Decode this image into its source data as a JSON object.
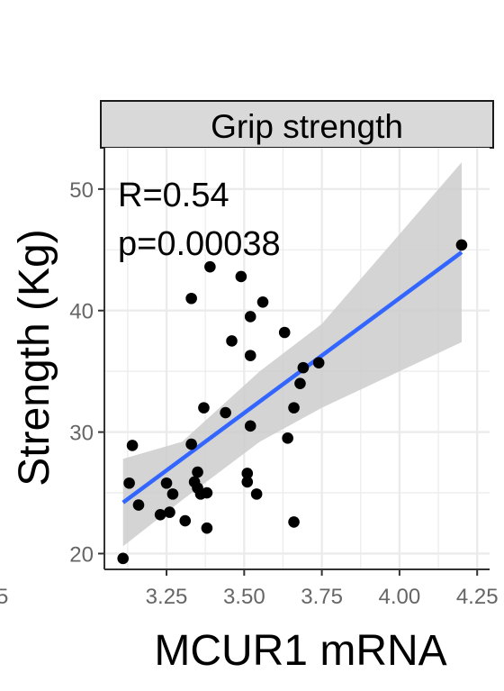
{
  "chart_data": {
    "type": "scatter",
    "panel_title": "Grip strength",
    "xlabel": "MCUR1 mRNA",
    "ylabel": "Strength (Kg)",
    "annotations": [
      "R=0.54",
      "p=0.00038"
    ],
    "xlim": [
      3.05,
      4.29
    ],
    "ylim": [
      18.7,
      53.4
    ],
    "x_ticks": [
      3.25,
      3.5,
      3.75,
      4.0,
      4.25
    ],
    "x_tick_labels": [
      "3.25",
      "3.50",
      "3.75",
      "4.00",
      "4.25"
    ],
    "y_ticks": [
      20,
      30,
      40,
      50
    ],
    "y_tick_labels": [
      "20",
      "30",
      "40",
      "50"
    ],
    "grid": true,
    "cropped_left_tick_label": "5",
    "points": [
      {
        "x": 3.11,
        "y": 19.6
      },
      {
        "x": 3.13,
        "y": 25.8
      },
      {
        "x": 3.14,
        "y": 28.9
      },
      {
        "x": 3.16,
        "y": 24.0
      },
      {
        "x": 3.23,
        "y": 23.2
      },
      {
        "x": 3.25,
        "y": 25.8
      },
      {
        "x": 3.26,
        "y": 23.4
      },
      {
        "x": 3.27,
        "y": 24.9
      },
      {
        "x": 3.31,
        "y": 22.7
      },
      {
        "x": 3.33,
        "y": 41.0
      },
      {
        "x": 3.33,
        "y": 29.0
      },
      {
        "x": 3.34,
        "y": 25.9
      },
      {
        "x": 3.35,
        "y": 26.7
      },
      {
        "x": 3.35,
        "y": 25.4
      },
      {
        "x": 3.36,
        "y": 24.9
      },
      {
        "x": 3.37,
        "y": 32.0
      },
      {
        "x": 3.38,
        "y": 25.0
      },
      {
        "x": 3.38,
        "y": 22.1
      },
      {
        "x": 3.39,
        "y": 43.6
      },
      {
        "x": 3.44,
        "y": 31.6
      },
      {
        "x": 3.46,
        "y": 37.5
      },
      {
        "x": 3.49,
        "y": 42.8
      },
      {
        "x": 3.51,
        "y": 26.6
      },
      {
        "x": 3.51,
        "y": 25.9
      },
      {
        "x": 3.52,
        "y": 39.5
      },
      {
        "x": 3.52,
        "y": 36.3
      },
      {
        "x": 3.52,
        "y": 30.5
      },
      {
        "x": 3.54,
        "y": 24.9
      },
      {
        "x": 3.56,
        "y": 40.7
      },
      {
        "x": 3.63,
        "y": 38.2
      },
      {
        "x": 3.64,
        "y": 29.5
      },
      {
        "x": 3.66,
        "y": 22.6
      },
      {
        "x": 3.66,
        "y": 32.0
      },
      {
        "x": 3.68,
        "y": 34.0
      },
      {
        "x": 3.69,
        "y": 35.3
      },
      {
        "x": 3.74,
        "y": 35.7
      },
      {
        "x": 4.2,
        "y": 45.4
      }
    ],
    "fit": {
      "x_start": 3.11,
      "y_start": 24.2,
      "x_end": 4.2,
      "y_end": 44.8
    },
    "confidence_band": {
      "x": [
        3.11,
        3.3,
        3.55,
        3.75,
        4.2
      ],
      "lower": [
        20.6,
        24.4,
        29.2,
        32.0,
        37.4
      ],
      "upper": [
        27.8,
        29.2,
        35.0,
        38.9,
        52.2
      ]
    },
    "colors": {
      "fit_line": "#3366ff",
      "band": "#cccccc",
      "points": "#000000",
      "strip_background": "#d9d9d9",
      "grid": "#ebebeb"
    }
  }
}
